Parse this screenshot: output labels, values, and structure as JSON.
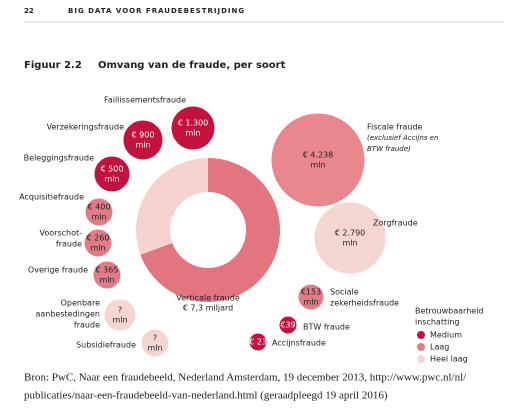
{
  "header": {
    "page_number": "22",
    "running_title": "BIG DATA VOOR FRAUDEBESTRIJDING"
  },
  "figure": {
    "label": "Figuur 2.2",
    "title": "Omvang van de fraude, per soort",
    "center": {
      "label": "Verticale fraude",
      "amount": "€ 7,3 miljard"
    },
    "bubbles": [
      {
        "label": [
          "Faillissementsfraude"
        ],
        "amount": "€ 1.300",
        "unit": "mln",
        "color": "#c4123e"
      },
      {
        "label": [
          "Verzekeringsfraude"
        ],
        "amount": "€ 900",
        "unit": "mln",
        "color": "#c4123e"
      },
      {
        "label": [
          "Beleggingsfraude"
        ],
        "amount": "€ 500",
        "unit": "mln",
        "color": "#c4123e"
      },
      {
        "label": [
          "Acquisitiefraude"
        ],
        "amount": "€ 400",
        "unit": "mln",
        "color": "#e07c86"
      },
      {
        "label": [
          "Voorschot-",
          "fraude"
        ],
        "amount": "€ 260",
        "unit": "mln",
        "color": "#e07c86"
      },
      {
        "label": [
          "Overige fraude"
        ],
        "amount": "€ 365",
        "unit": "mln",
        "color": "#e07c86"
      },
      {
        "label": [
          "Openbare",
          "aanbestedingen",
          "fraude"
        ],
        "amount": "?",
        "unit": "mln",
        "color": "#f6d6d3"
      },
      {
        "label": [
          "Subsidiefraude"
        ],
        "amount": "?",
        "unit": "mln",
        "color": "#f6d6d3"
      },
      {
        "label": [
          "Fiscale fraude",
          "(exclusief Accijns en",
          "BTW fraude)"
        ],
        "amount": "€ 4.238",
        "unit": "mln",
        "color": "#e8878e"
      },
      {
        "label": [
          "Zorgfraude"
        ],
        "amount": "€ 2.790",
        "unit": "mln",
        "color": "#f6d6d3"
      },
      {
        "label": [
          "Sociale",
          "zekerheidsfraude"
        ],
        "amount": "€153",
        "unit": "mln",
        "color": "#e07c86"
      },
      {
        "label": [
          "BTW fraude"
        ],
        "amount": "€39",
        "color": "#c4123e"
      },
      {
        "label": [
          "Accijnsfraude"
        ],
        "amount": "€ 23",
        "color": "#c4123e"
      }
    ],
    "legend": {
      "title": [
        "Betrouwbaarheid",
        "inschatting"
      ],
      "items": [
        {
          "label": "Medium",
          "color": "#c4123e"
        },
        {
          "label": "Laag",
          "color": "#e07c86"
        },
        {
          "label": "Heel laag",
          "color": "#f6d6d3"
        }
      ]
    }
  },
  "source": [
    "Bron: PwC, Naar een fraudebeeld, Nederland Amsterdam, 19 december 2013, http://www.pwc.nl/nl/",
    "publicaties/naar-een-fraudebeeld-van-nederland.html (geraadpleegd 19 april 2016)"
  ]
}
